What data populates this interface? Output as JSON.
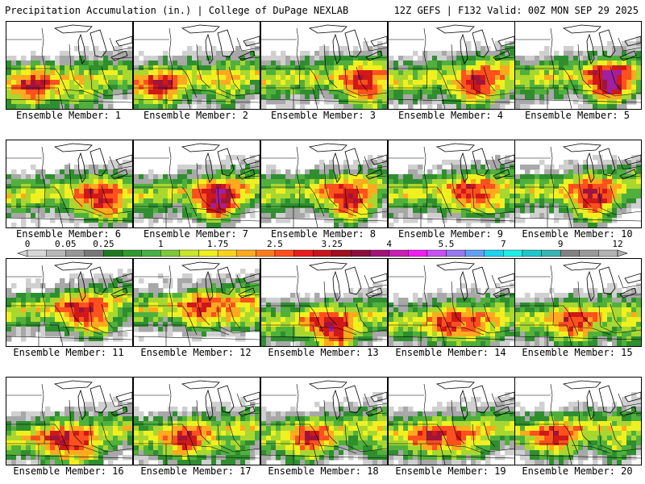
{
  "header": {
    "left_title": "Precipitation Accumulation (in.) | College of DuPage NEXLAB",
    "right_title": "12Z GEFS | F132 Valid: 00Z MON SEP 29 2025"
  },
  "member_label_prefix": "Ensemble Member: ",
  "members": [
    1,
    2,
    3,
    4,
    5,
    6,
    7,
    8,
    9,
    10,
    11,
    12,
    13,
    14,
    15,
    16,
    17,
    18,
    19,
    20
  ],
  "colorbar": {
    "colors": [
      "#d8d8d8",
      "#b8b8b8",
      "#989898",
      "#787878",
      "#1f7a1f",
      "#2f9a2f",
      "#45b045",
      "#7ec83a",
      "#c8e62a",
      "#f0f01e",
      "#ffd21e",
      "#ffaa1e",
      "#ff7c1e",
      "#ff501e",
      "#e81e1e",
      "#c8141e",
      "#a0101e",
      "#8c0e3c",
      "#a01478",
      "#c81eb4",
      "#f01ef0",
      "#c850f0",
      "#9678f0",
      "#64a0f0",
      "#1ed2f0",
      "#1ef0e6",
      "#1ec8c8",
      "#3cb4b4",
      "#828282",
      "#9a9a9a",
      "#b4b4b4"
    ],
    "labels": [
      {
        "text": "0",
        "bin": 0
      },
      {
        "text": "0.05",
        "bin": 2
      },
      {
        "text": "0.25",
        "bin": 4
      },
      {
        "text": "1",
        "bin": 7
      },
      {
        "text": "1.75",
        "bin": 10
      },
      {
        "text": "2.5",
        "bin": 13
      },
      {
        "text": "3.25",
        "bin": 16
      },
      {
        "text": "4",
        "bin": 19
      },
      {
        "text": "5.5",
        "bin": 22
      },
      {
        "text": "7",
        "bin": 25
      },
      {
        "text": "9",
        "bin": 28
      },
      {
        "text": "12",
        "bin": 31
      }
    ]
  },
  "intensity_colors": [
    "#ffffff",
    "#d0d0d0",
    "#a8a8a8",
    "#2f8f2f",
    "#50b03c",
    "#a8d830",
    "#f0f020",
    "#ffaa1e",
    "#ff501e",
    "#d01818",
    "#a0143c",
    "#a020a0"
  ],
  "boundary_color": "#000000"
}
